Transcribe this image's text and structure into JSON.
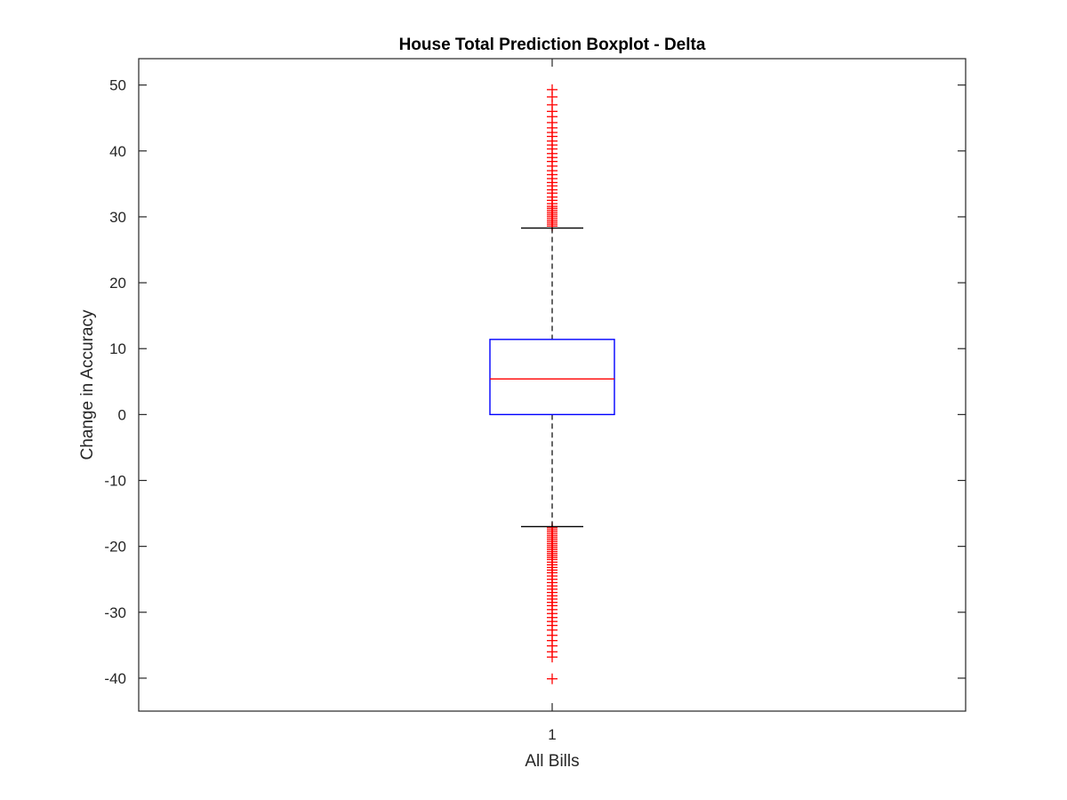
{
  "chart_data": {
    "type": "boxplot",
    "title": "House Total Prediction Boxplot - Delta",
    "xlabel": "All Bills",
    "ylabel": "Change in Accuracy",
    "categories": [
      "1"
    ],
    "ylim": [
      -45,
      54
    ],
    "yticks": [
      50,
      40,
      30,
      20,
      10,
      0,
      -10,
      -20,
      -30,
      -40
    ],
    "ytick_labels": [
      "50",
      "40",
      "30",
      "20",
      "10",
      "0",
      "-10",
      "-20",
      "-30",
      "-40"
    ],
    "box": {
      "lower_whisker": -17,
      "q1": 0,
      "median": 5.4,
      "q3": 11.4,
      "upper_whisker": 28.3
    },
    "outliers_high": [
      28.6,
      28.9,
      29.2,
      29.5,
      29.8,
      30.1,
      30.4,
      30.7,
      31.0,
      31.3,
      31.6,
      32.0,
      32.5,
      33.0,
      33.6,
      34.1,
      34.7,
      35.2,
      35.8,
      36.4,
      37.0,
      37.7,
      38.4,
      39.0,
      39.6,
      40.3,
      40.9,
      41.5,
      42.2,
      42.8,
      43.5,
      44.3,
      45.2,
      46.0,
      47.0,
      48.2,
      49.3
    ],
    "outliers_low": [
      -17.2,
      -17.5,
      -17.8,
      -18.1,
      -18.4,
      -18.7,
      -19.0,
      -19.3,
      -19.6,
      -19.9,
      -20.2,
      -20.5,
      -20.8,
      -21.1,
      -21.4,
      -21.7,
      -22.0,
      -22.4,
      -22.8,
      -23.2,
      -23.6,
      -24.0,
      -24.5,
      -25.0,
      -25.5,
      -26.0,
      -26.5,
      -27.0,
      -27.5,
      -28.0,
      -28.5,
      -29.0,
      -29.6,
      -30.2,
      -30.8,
      -31.4,
      -32.0,
      -32.7,
      -33.5,
      -34.3,
      -35.1,
      -36.0,
      -36.8,
      -40.1
    ],
    "colors": {
      "box": "#0000ff",
      "median": "#ff0000",
      "outlier": "#ff0000",
      "whisker": "#000000",
      "axes": "#262626"
    }
  }
}
